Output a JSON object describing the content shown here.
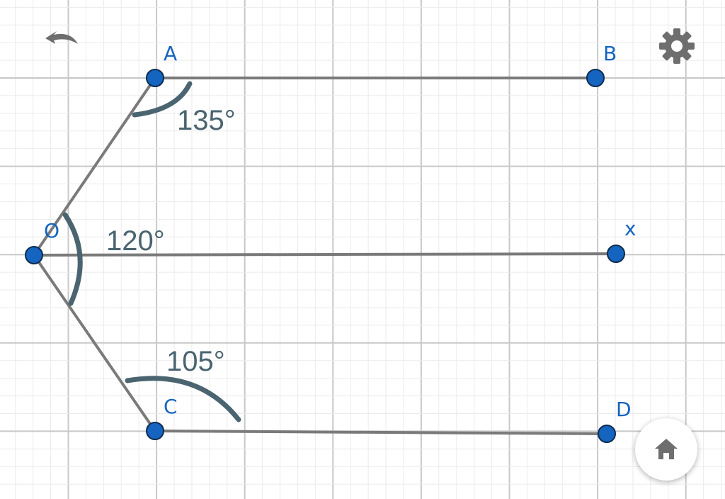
{
  "points": [
    {
      "name": "A",
      "label": "A"
    },
    {
      "name": "B",
      "label": "B"
    },
    {
      "name": "O",
      "label": "O"
    },
    {
      "name": "X",
      "label": "x"
    },
    {
      "name": "C",
      "label": "C"
    },
    {
      "name": "D",
      "label": "D"
    }
  ],
  "annotations": {
    "angle_a": "135°",
    "angle_o": "120°",
    "angle_c": "105°"
  },
  "colors": {
    "point": "#1565c0",
    "segment": "#7a7a7a",
    "annotation": "#4a6470",
    "grid_major": "#c8c8c8",
    "grid_minor": "#ebebeb"
  },
  "toolbar": {
    "undo_icon": "undo-icon",
    "settings_icon": "gear-icon",
    "home_icon": "home-icon"
  }
}
